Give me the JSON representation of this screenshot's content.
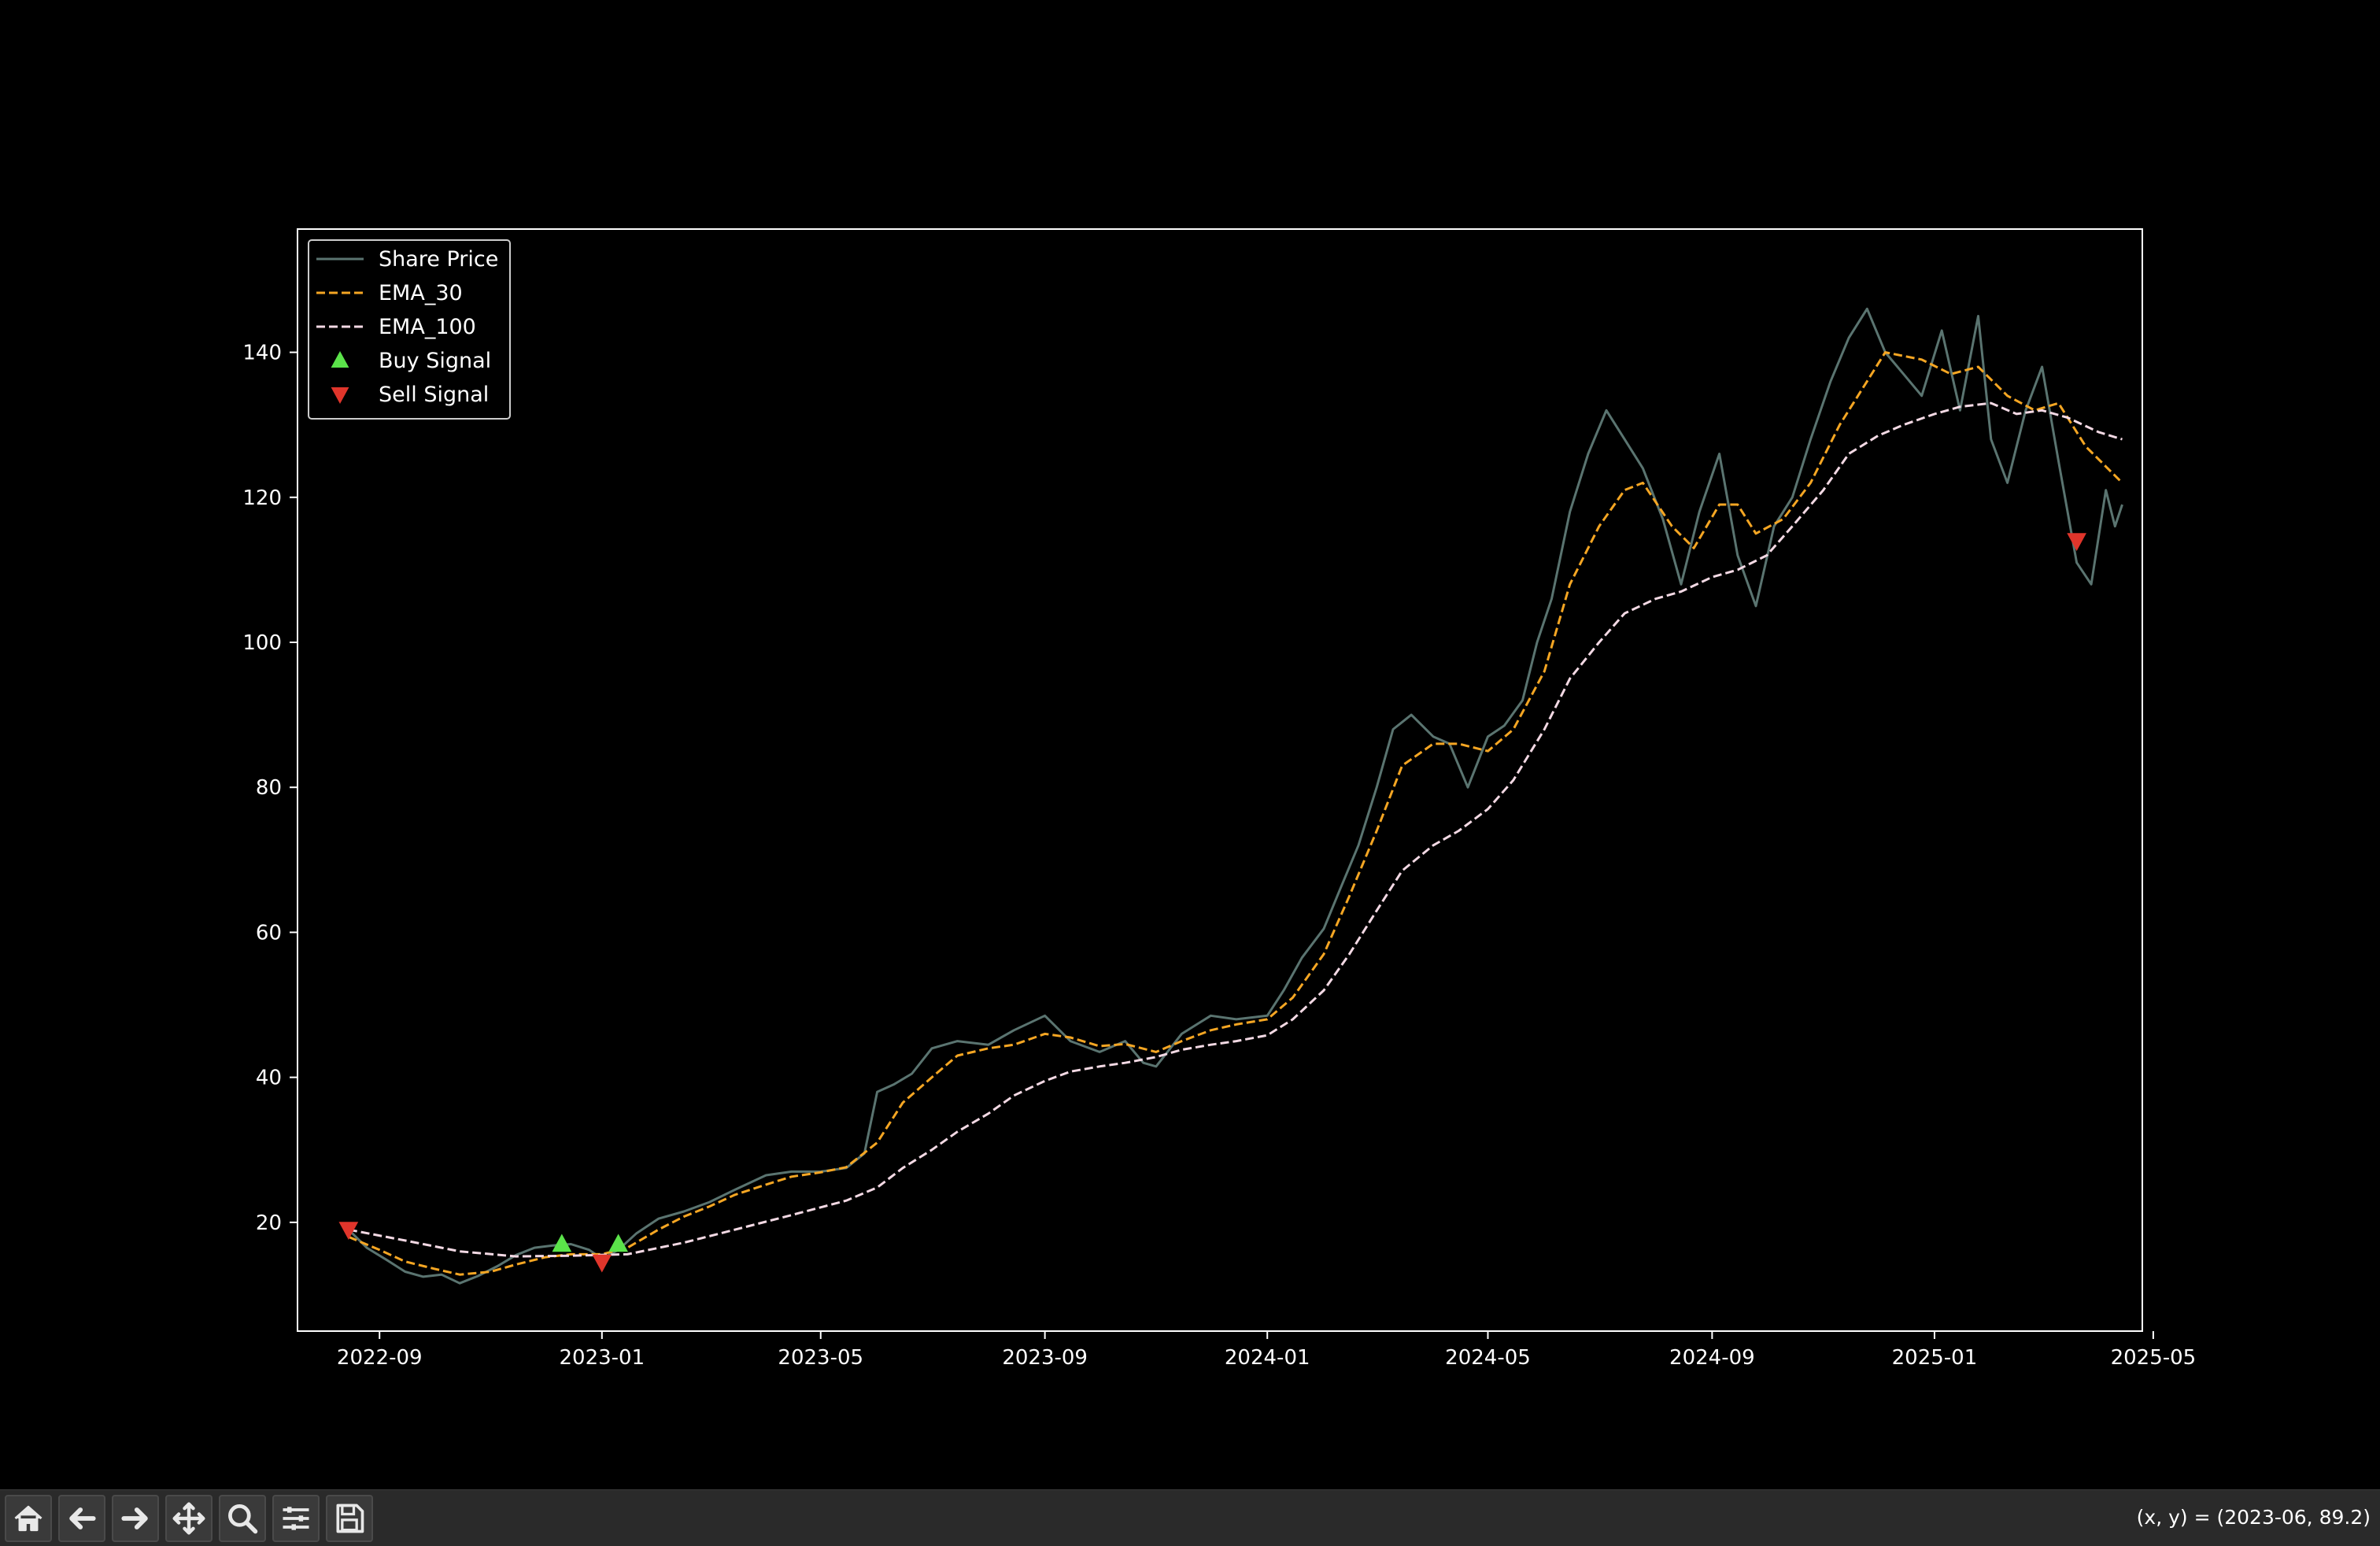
{
  "chart_data": {
    "type": "line",
    "title": "",
    "xlabel": "",
    "ylabel": "",
    "x_range": [
      "2022-07-18",
      "2025-04-25"
    ],
    "ylim": [
      5,
      157
    ],
    "x_ticks": [
      "2022-09",
      "2023-01",
      "2023-05",
      "2023-09",
      "2024-01",
      "2024-05",
      "2024-09",
      "2025-01",
      "2025-05"
    ],
    "y_ticks": [
      20,
      40,
      60,
      80,
      100,
      120,
      140
    ],
    "grid": false,
    "legend_position": "upper left",
    "series": [
      {
        "name": "Share Price",
        "color": "#5a7470",
        "style": "solid",
        "points": [
          [
            "2022-08-15",
            19.0
          ],
          [
            "2022-08-25",
            16.5
          ],
          [
            "2022-09-05",
            14.8
          ],
          [
            "2022-09-15",
            13.2
          ],
          [
            "2022-09-25",
            12.5
          ],
          [
            "2022-10-05",
            12.8
          ],
          [
            "2022-10-15",
            11.6
          ],
          [
            "2022-10-25",
            12.6
          ],
          [
            "2022-11-05",
            14.0
          ],
          [
            "2022-11-15",
            15.5
          ],
          [
            "2022-11-25",
            16.5
          ],
          [
            "2022-12-05",
            16.8
          ],
          [
            "2022-12-15",
            17.0
          ],
          [
            "2022-12-25",
            16.2
          ],
          [
            "2023-01-01",
            15.0
          ],
          [
            "2023-01-10",
            16.2
          ],
          [
            "2023-01-20",
            18.5
          ],
          [
            "2023-02-01",
            20.5
          ],
          [
            "2023-02-15",
            21.5
          ],
          [
            "2023-03-01",
            22.8
          ],
          [
            "2023-03-15",
            24.5
          ],
          [
            "2023-04-01",
            26.5
          ],
          [
            "2023-04-15",
            27.0
          ],
          [
            "2023-05-01",
            27.0
          ],
          [
            "2023-05-15",
            27.5
          ],
          [
            "2023-05-25",
            29.5
          ],
          [
            "2023-06-01",
            38.0
          ],
          [
            "2023-06-10",
            39.0
          ],
          [
            "2023-06-20",
            40.5
          ],
          [
            "2023-07-01",
            44.0
          ],
          [
            "2023-07-15",
            45.0
          ],
          [
            "2023-08-01",
            44.5
          ],
          [
            "2023-08-15",
            46.5
          ],
          [
            "2023-09-01",
            48.5
          ],
          [
            "2023-09-15",
            45.0
          ],
          [
            "2023-10-01",
            43.5
          ],
          [
            "2023-10-15",
            45.0
          ],
          [
            "2023-10-25",
            42.0
          ],
          [
            "2023-11-01",
            41.5
          ],
          [
            "2023-11-15",
            46.0
          ],
          [
            "2023-12-01",
            48.5
          ],
          [
            "2023-12-15",
            48.0
          ],
          [
            "2024-01-01",
            48.5
          ],
          [
            "2024-01-10",
            52.0
          ],
          [
            "2024-01-20",
            56.5
          ],
          [
            "2024-02-01",
            60.5
          ],
          [
            "2024-02-10",
            66.0
          ],
          [
            "2024-02-20",
            72.0
          ],
          [
            "2024-03-01",
            80.0
          ],
          [
            "2024-03-10",
            88.0
          ],
          [
            "2024-03-20",
            90.0
          ],
          [
            "2024-04-01",
            87.0
          ],
          [
            "2024-04-10",
            86.0
          ],
          [
            "2024-04-20",
            80.0
          ],
          [
            "2024-05-01",
            87.0
          ],
          [
            "2024-05-10",
            88.5
          ],
          [
            "2024-05-20",
            92.0
          ],
          [
            "2024-05-28",
            100.0
          ],
          [
            "2024-06-05",
            106.0
          ],
          [
            "2024-06-15",
            118.0
          ],
          [
            "2024-06-25",
            126.0
          ],
          [
            "2024-07-05",
            132.0
          ],
          [
            "2024-07-15",
            128.0
          ],
          [
            "2024-07-25",
            124.0
          ],
          [
            "2024-08-05",
            117.0
          ],
          [
            "2024-08-15",
            108.0
          ],
          [
            "2024-08-25",
            118.0
          ],
          [
            "2024-09-05",
            126.0
          ],
          [
            "2024-09-15",
            112.0
          ],
          [
            "2024-09-25",
            105.0
          ],
          [
            "2024-10-05",
            116.0
          ],
          [
            "2024-10-15",
            120.0
          ],
          [
            "2024-10-25",
            128.0
          ],
          [
            "2024-11-05",
            136.0
          ],
          [
            "2024-11-15",
            142.0
          ],
          [
            "2024-11-25",
            146.0
          ],
          [
            "2024-12-05",
            140.0
          ],
          [
            "2024-12-15",
            137.0
          ],
          [
            "2024-12-25",
            134.0
          ],
          [
            "2025-01-05",
            143.0
          ],
          [
            "2025-01-15",
            132.0
          ],
          [
            "2025-01-25",
            145.0
          ],
          [
            "2025-02-01",
            128.0
          ],
          [
            "2025-02-10",
            122.0
          ],
          [
            "2025-02-20",
            132.0
          ],
          [
            "2025-03-01",
            138.0
          ],
          [
            "2025-03-10",
            125.0
          ],
          [
            "2025-03-20",
            111.0
          ],
          [
            "2025-03-28",
            108.0
          ],
          [
            "2025-04-05",
            121.0
          ],
          [
            "2025-04-10",
            116.0
          ],
          [
            "2025-04-14",
            119.0
          ]
        ]
      },
      {
        "name": "EMA_30",
        "color": "#f5a623",
        "style": "dashed",
        "points": [
          [
            "2022-08-15",
            18.0
          ],
          [
            "2022-09-01",
            16.2
          ],
          [
            "2022-09-15",
            14.6
          ],
          [
            "2022-10-01",
            13.6
          ],
          [
            "2022-10-15",
            12.8
          ],
          [
            "2022-11-01",
            13.2
          ],
          [
            "2022-11-15",
            14.2
          ],
          [
            "2022-12-01",
            15.2
          ],
          [
            "2022-12-15",
            15.6
          ],
          [
            "2023-01-01",
            15.6
          ],
          [
            "2023-01-15",
            16.5
          ],
          [
            "2023-02-01",
            19.0
          ],
          [
            "2023-02-15",
            20.8
          ],
          [
            "2023-03-01",
            22.2
          ],
          [
            "2023-03-15",
            23.8
          ],
          [
            "2023-04-01",
            25.2
          ],
          [
            "2023-04-15",
            26.3
          ],
          [
            "2023-05-01",
            26.9
          ],
          [
            "2023-05-15",
            27.6
          ],
          [
            "2023-06-01",
            31.0
          ],
          [
            "2023-06-15",
            36.5
          ],
          [
            "2023-07-01",
            40.0
          ],
          [
            "2023-07-15",
            43.0
          ],
          [
            "2023-08-01",
            44.0
          ],
          [
            "2023-08-15",
            44.5
          ],
          [
            "2023-09-01",
            46.0
          ],
          [
            "2023-09-15",
            45.5
          ],
          [
            "2023-10-01",
            44.3
          ],
          [
            "2023-10-15",
            44.6
          ],
          [
            "2023-11-01",
            43.5
          ],
          [
            "2023-11-15",
            45.0
          ],
          [
            "2023-12-01",
            46.5
          ],
          [
            "2023-12-15",
            47.3
          ],
          [
            "2024-01-01",
            48.0
          ],
          [
            "2024-01-15",
            51.0
          ],
          [
            "2024-02-01",
            57.0
          ],
          [
            "2024-02-15",
            65.0
          ],
          [
            "2024-03-01",
            74.0
          ],
          [
            "2024-03-15",
            83.0
          ],
          [
            "2024-04-01",
            86.0
          ],
          [
            "2024-04-15",
            86.0
          ],
          [
            "2024-05-01",
            85.0
          ],
          [
            "2024-05-15",
            88.0
          ],
          [
            "2024-06-01",
            96.0
          ],
          [
            "2024-06-15",
            108.0
          ],
          [
            "2024-07-01",
            116.0
          ],
          [
            "2024-07-15",
            121.0
          ],
          [
            "2024-07-25",
            122.0
          ],
          [
            "2024-08-10",
            116.0
          ],
          [
            "2024-08-22",
            113.0
          ],
          [
            "2024-09-05",
            119.0
          ],
          [
            "2024-09-15",
            119.0
          ],
          [
            "2024-09-25",
            115.0
          ],
          [
            "2024-10-10",
            117.0
          ],
          [
            "2024-10-25",
            122.0
          ],
          [
            "2024-11-10",
            130.0
          ],
          [
            "2024-11-25",
            136.0
          ],
          [
            "2024-12-05",
            140.0
          ],
          [
            "2024-12-25",
            139.0
          ],
          [
            "2025-01-10",
            137.0
          ],
          [
            "2025-01-25",
            138.0
          ],
          [
            "2025-02-10",
            134.0
          ],
          [
            "2025-02-25",
            132.0
          ],
          [
            "2025-03-10",
            133.0
          ],
          [
            "2025-03-25",
            127.0
          ],
          [
            "2025-04-14",
            122.0
          ]
        ]
      },
      {
        "name": "EMA_100",
        "color": "#f3d9e4",
        "style": "dashed",
        "points": [
          [
            "2022-08-15",
            19.0
          ],
          [
            "2022-09-15",
            17.5
          ],
          [
            "2022-10-15",
            16.0
          ],
          [
            "2022-11-15",
            15.3
          ],
          [
            "2022-12-15",
            15.4
          ],
          [
            "2023-01-15",
            15.6
          ],
          [
            "2023-02-15",
            17.2
          ],
          [
            "2023-03-15",
            19.0
          ],
          [
            "2023-04-15",
            21.0
          ],
          [
            "2023-05-15",
            23.0
          ],
          [
            "2023-06-01",
            24.8
          ],
          [
            "2023-06-15",
            27.5
          ],
          [
            "2023-07-01",
            30.0
          ],
          [
            "2023-07-15",
            32.5
          ],
          [
            "2023-08-01",
            35.0
          ],
          [
            "2023-08-15",
            37.5
          ],
          [
            "2023-09-01",
            39.5
          ],
          [
            "2023-09-15",
            40.8
          ],
          [
            "2023-10-01",
            41.5
          ],
          [
            "2023-10-15",
            42.0
          ],
          [
            "2023-11-01",
            42.8
          ],
          [
            "2023-11-15",
            43.8
          ],
          [
            "2023-12-01",
            44.5
          ],
          [
            "2023-12-15",
            45.0
          ],
          [
            "2024-01-01",
            45.8
          ],
          [
            "2024-01-15",
            48.0
          ],
          [
            "2024-02-01",
            52.0
          ],
          [
            "2024-02-15",
            57.0
          ],
          [
            "2024-03-01",
            63.0
          ],
          [
            "2024-03-15",
            68.5
          ],
          [
            "2024-04-01",
            72.0
          ],
          [
            "2024-04-15",
            74.0
          ],
          [
            "2024-05-01",
            77.0
          ],
          [
            "2024-05-15",
            81.0
          ],
          [
            "2024-06-01",
            88.0
          ],
          [
            "2024-06-15",
            95.0
          ],
          [
            "2024-07-01",
            100.0
          ],
          [
            "2024-07-15",
            104.0
          ],
          [
            "2024-08-01",
            106.0
          ],
          [
            "2024-08-15",
            107.0
          ],
          [
            "2024-09-01",
            109.0
          ],
          [
            "2024-09-15",
            110.0
          ],
          [
            "2024-10-01",
            112.0
          ],
          [
            "2024-10-15",
            116.0
          ],
          [
            "2024-11-01",
            121.0
          ],
          [
            "2024-11-15",
            126.0
          ],
          [
            "2024-12-01",
            128.5
          ],
          [
            "2024-12-15",
            130.0
          ],
          [
            "2025-01-01",
            131.5
          ],
          [
            "2025-01-15",
            132.5
          ],
          [
            "2025-02-01",
            133.0
          ],
          [
            "2025-02-15",
            131.5
          ],
          [
            "2025-03-01",
            132.0
          ],
          [
            "2025-03-15",
            131.0
          ],
          [
            "2025-04-01",
            129.0
          ],
          [
            "2025-04-14",
            128.0
          ]
        ]
      }
    ],
    "markers": [
      {
        "name": "Buy Signal",
        "color": "#5be34a",
        "shape": "triangle-up",
        "points": [
          [
            "2022-12-10",
            17.0
          ],
          [
            "2023-01-10",
            17.0
          ]
        ]
      },
      {
        "name": "Sell Signal",
        "color": "#e0352b",
        "shape": "triangle-down",
        "points": [
          [
            "2022-08-15",
            19.0
          ],
          [
            "2023-01-01",
            14.5
          ],
          [
            "2025-03-20",
            114.0
          ]
        ]
      }
    ]
  },
  "toolbar": {
    "buttons": [
      {
        "name": "home-button",
        "icon": "home-icon"
      },
      {
        "name": "back-button",
        "icon": "arrow-left-icon"
      },
      {
        "name": "forward-button",
        "icon": "arrow-right-icon"
      },
      {
        "name": "pan-button",
        "icon": "move-icon"
      },
      {
        "name": "zoom-button",
        "icon": "magnifier-icon"
      },
      {
        "name": "configure-button",
        "icon": "sliders-icon"
      },
      {
        "name": "save-button",
        "icon": "floppy-disk-icon"
      }
    ],
    "coords_text": "(x, y) = (2023-06, 89.2)"
  }
}
